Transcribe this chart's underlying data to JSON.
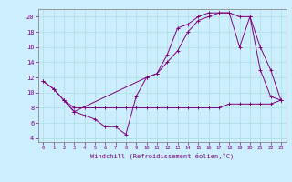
{
  "background_color": "#cceeff",
  "line_color": "#800080",
  "grid_color": "#aadddd",
  "xlabel": "Windchill (Refroidissement éolien,°C)",
  "xlim": [
    -0.5,
    23.5
  ],
  "ylim": [
    3.5,
    21
  ],
  "yticks": [
    4,
    6,
    8,
    10,
    12,
    14,
    16,
    18,
    20
  ],
  "xticks": [
    0,
    1,
    2,
    3,
    4,
    5,
    6,
    7,
    8,
    9,
    10,
    11,
    12,
    13,
    14,
    15,
    16,
    17,
    18,
    19,
    20,
    21,
    22,
    23
  ],
  "line1_x": [
    0,
    1,
    2,
    3,
    4,
    5,
    6,
    7,
    8,
    9,
    10,
    11,
    12,
    13,
    14,
    15,
    16,
    17,
    18,
    19,
    20,
    21,
    22,
    23
  ],
  "line1_y": [
    11.5,
    10.5,
    9.0,
    8.0,
    8.0,
    8.0,
    8.0,
    8.0,
    8.0,
    8.0,
    8.0,
    8.0,
    8.0,
    8.0,
    8.0,
    8.0,
    8.0,
    8.0,
    8.5,
    8.5,
    8.5,
    8.5,
    8.5,
    9.0
  ],
  "line2_x": [
    0,
    1,
    2,
    3,
    4,
    5,
    6,
    7,
    8,
    9,
    10,
    11,
    12,
    13,
    14,
    15,
    16,
    17,
    18,
    19,
    20,
    21,
    22,
    23
  ],
  "line2_y": [
    11.5,
    10.5,
    9.0,
    7.5,
    7.0,
    6.5,
    5.5,
    5.5,
    4.5,
    9.5,
    12.0,
    12.5,
    15.0,
    18.5,
    19.0,
    20.0,
    20.5,
    20.5,
    20.5,
    16.0,
    20.0,
    13.0,
    9.5,
    9.0
  ],
  "line3_x": [
    2,
    3,
    10,
    11,
    12,
    13,
    14,
    15,
    16,
    17,
    18,
    19,
    20,
    21,
    22,
    23
  ],
  "line3_y": [
    9.0,
    7.5,
    12.0,
    12.5,
    14.0,
    15.5,
    18.0,
    19.5,
    20.0,
    20.5,
    20.5,
    20.0,
    20.0,
    16.0,
    13.0,
    9.0
  ]
}
